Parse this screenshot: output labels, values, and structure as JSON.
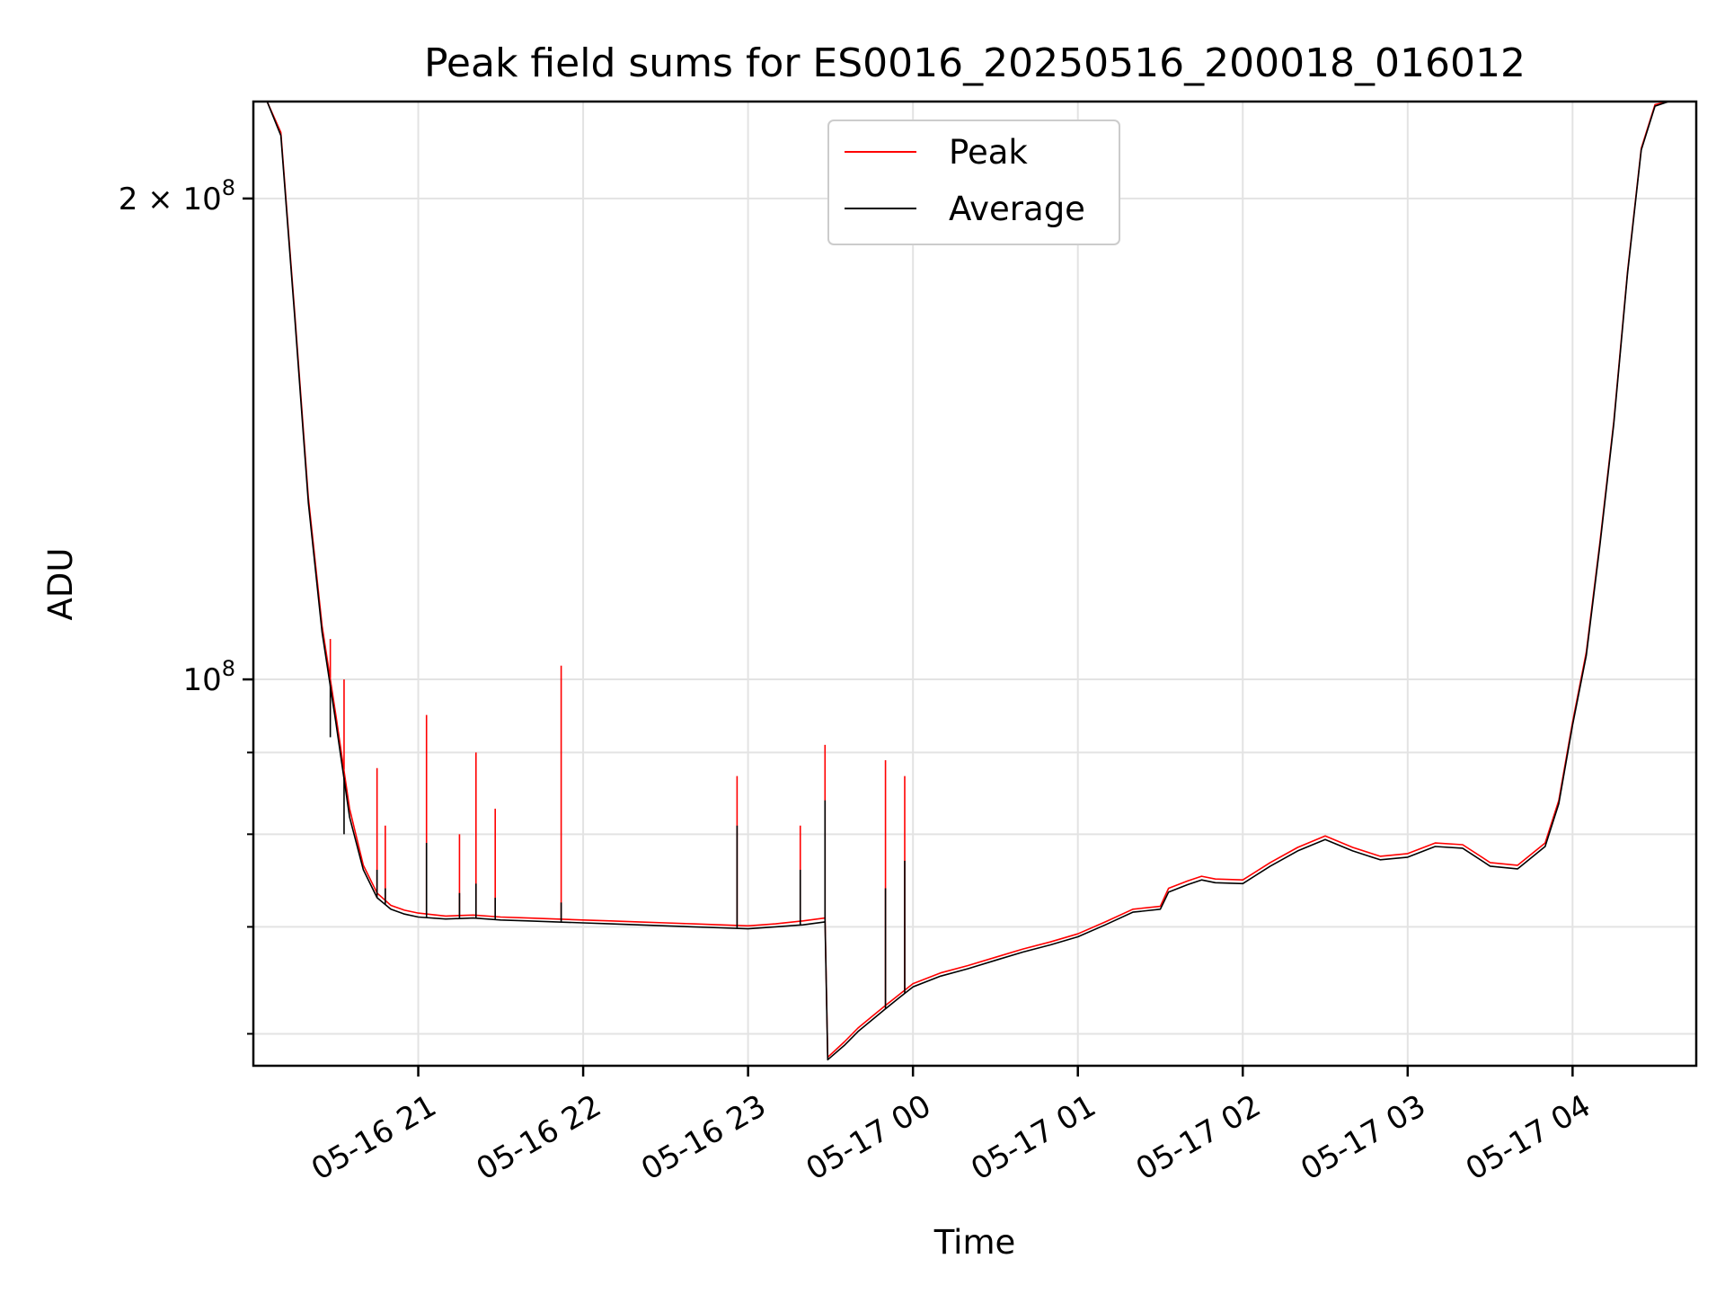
{
  "chart_data": {
    "type": "line",
    "title": "Peak field sums for ES0016_20250516_200018_016012",
    "xlabel": "Time",
    "ylabel": "ADU",
    "y_scale": "log",
    "x_scale": "time",
    "xlim": [
      "2025-05-16 20:00",
      "2025-05-17 04:45"
    ],
    "ylim": [
      57300000,
      230000000
    ],
    "grid": true,
    "legend_position": "top-center",
    "x_ticks": [
      "05-16 21",
      "05-16 22",
      "05-16 23",
      "05-17 00",
      "05-17 01",
      "05-17 02",
      "05-17 03",
      "05-17 04"
    ],
    "x_tick_times": [
      "2025-05-16 21:00",
      "2025-05-16 22:00",
      "2025-05-16 23:00",
      "2025-05-17 00:00",
      "2025-05-17 01:00",
      "2025-05-17 02:00",
      "2025-05-17 03:00",
      "2025-05-17 04:00"
    ],
    "y_major_ticks": [
      {
        "value": 100000000,
        "mantissa": "",
        "exponent": "8"
      },
      {
        "value": 200000000,
        "mantissa": "2",
        "exponent": "8"
      }
    ],
    "y_minor_ticks": [
      60000000,
      70000000,
      80000000,
      90000000
    ],
    "x": [
      "2025-05-16 20:00",
      "2025-05-16 20:05",
      "2025-05-16 20:10",
      "2025-05-16 20:15",
      "2025-05-16 20:20",
      "2025-05-16 20:25",
      "2025-05-16 20:30",
      "2025-05-16 20:35",
      "2025-05-16 20:40",
      "2025-05-16 20:45",
      "2025-05-16 20:50",
      "2025-05-16 20:55",
      "2025-05-16 21:00",
      "2025-05-16 21:10",
      "2025-05-16 21:20",
      "2025-05-16 21:30",
      "2025-05-16 21:40",
      "2025-05-16 21:50",
      "2025-05-16 22:00",
      "2025-05-16 22:10",
      "2025-05-16 22:20",
      "2025-05-16 22:30",
      "2025-05-16 22:40",
      "2025-05-16 22:50",
      "2025-05-16 23:00",
      "2025-05-16 23:10",
      "2025-05-16 23:20",
      "2025-05-16 23:28",
      "2025-05-16 23:29",
      "2025-05-16 23:35",
      "2025-05-16 23:40",
      "2025-05-16 23:45",
      "2025-05-16 23:50",
      "2025-05-16 23:55",
      "2025-05-17 00:00",
      "2025-05-17 00:10",
      "2025-05-17 00:20",
      "2025-05-17 00:30",
      "2025-05-17 00:40",
      "2025-05-17 00:50",
      "2025-05-17 01:00",
      "2025-05-17 01:10",
      "2025-05-17 01:20",
      "2025-05-17 01:30",
      "2025-05-17 01:33",
      "2025-05-17 01:40",
      "2025-05-17 01:45",
      "2025-05-17 01:50",
      "2025-05-17 02:00",
      "2025-05-17 02:10",
      "2025-05-17 02:20",
      "2025-05-17 02:30",
      "2025-05-17 02:40",
      "2025-05-17 02:50",
      "2025-05-17 03:00",
      "2025-05-17 03:10",
      "2025-05-17 03:20",
      "2025-05-17 03:30",
      "2025-05-17 03:40",
      "2025-05-17 03:50",
      "2025-05-17 03:55",
      "2025-05-17 04:00",
      "2025-05-17 04:05",
      "2025-05-17 04:10",
      "2025-05-17 04:15",
      "2025-05-17 04:20",
      "2025-05-17 04:25",
      "2025-05-17 04:30",
      "2025-05-17 04:35",
      "2025-05-17 04:45"
    ],
    "series": [
      {
        "name": "Peak",
        "color": "#ff0000",
        "values": [
          230000000,
          230000000,
          220000000,
          170000000,
          130000000,
          108000000,
          95000000,
          83000000,
          76500000,
          73500000,
          72200000,
          71700000,
          71400000,
          71100000,
          71200000,
          71000000,
          70900000,
          70800000,
          70700000,
          70600000,
          70500000,
          70400000,
          70300000,
          70200000,
          70100000,
          70300000,
          70600000,
          70900000,
          58000000,
          59300000,
          60500000,
          61500000,
          62500000,
          63500000,
          64500000,
          65500000,
          66200000,
          67000000,
          67800000,
          68500000,
          69300000,
          70500000,
          71800000,
          72100000,
          74000000,
          74800000,
          75300000,
          75000000,
          74900000,
          76800000,
          78500000,
          79800000,
          78500000,
          77500000,
          77800000,
          79000000,
          78800000,
          76800000,
          76500000,
          79000000,
          84000000,
          94000000,
          104000000,
          122000000,
          145000000,
          180000000,
          215000000,
          229000000,
          230000000,
          230000000
        ]
      },
      {
        "name": "Average",
        "color": "#000000",
        "values": [
          230000000,
          230000000,
          219000000,
          169000000,
          129000000,
          107000000,
          94000000,
          82000000,
          76000000,
          73000000,
          71800000,
          71300000,
          71000000,
          70800000,
          70900000,
          70700000,
          70600000,
          70500000,
          70400000,
          70300000,
          70200000,
          70100000,
          70000000,
          69900000,
          69800000,
          70000000,
          70200000,
          70500000,
          57800000,
          59000000,
          60200000,
          61200000,
          62200000,
          63200000,
          64200000,
          65200000,
          65900000,
          66700000,
          67500000,
          68200000,
          69000000,
          70200000,
          71500000,
          71800000,
          73600000,
          74400000,
          74900000,
          74600000,
          74500000,
          76400000,
          78100000,
          79400000,
          78100000,
          77100000,
          77400000,
          78600000,
          78400000,
          76400000,
          76100000,
          78600000,
          83600000,
          93600000,
          103500000,
          121500000,
          144500000,
          179500000,
          214500000,
          228500000,
          230000000,
          230000000
        ]
      }
    ],
    "spikes": [
      {
        "x": "2025-05-16 20:28",
        "peak": 106000000,
        "average": 92000000
      },
      {
        "x": "2025-05-16 20:33",
        "peak": 100000000,
        "average": 80000000
      },
      {
        "x": "2025-05-16 20:45",
        "peak": 88000000,
        "average": 76000000
      },
      {
        "x": "2025-05-16 20:48",
        "peak": 81000000,
        "average": 74000000
      },
      {
        "x": "2025-05-16 21:03",
        "peak": 95000000,
        "average": 79000000
      },
      {
        "x": "2025-05-16 21:15",
        "peak": 80000000,
        "average": 73500000
      },
      {
        "x": "2025-05-16 21:21",
        "peak": 90000000,
        "average": 74500000
      },
      {
        "x": "2025-05-16 21:28",
        "peak": 83000000,
        "average": 73000000
      },
      {
        "x": "2025-05-16 21:52",
        "peak": 102000000,
        "average": 72500000
      },
      {
        "x": "2025-05-16 22:56",
        "peak": 87000000,
        "average": 81000000
      },
      {
        "x": "2025-05-16 23:19",
        "peak": 81000000,
        "average": 76000000
      },
      {
        "x": "2025-05-16 23:28",
        "peak": 91000000,
        "average": 84000000
      },
      {
        "x": "2025-05-16 23:50",
        "peak": 89000000,
        "average": 74000000
      },
      {
        "x": "2025-05-16 23:57",
        "peak": 87000000,
        "average": 77000000
      }
    ]
  }
}
